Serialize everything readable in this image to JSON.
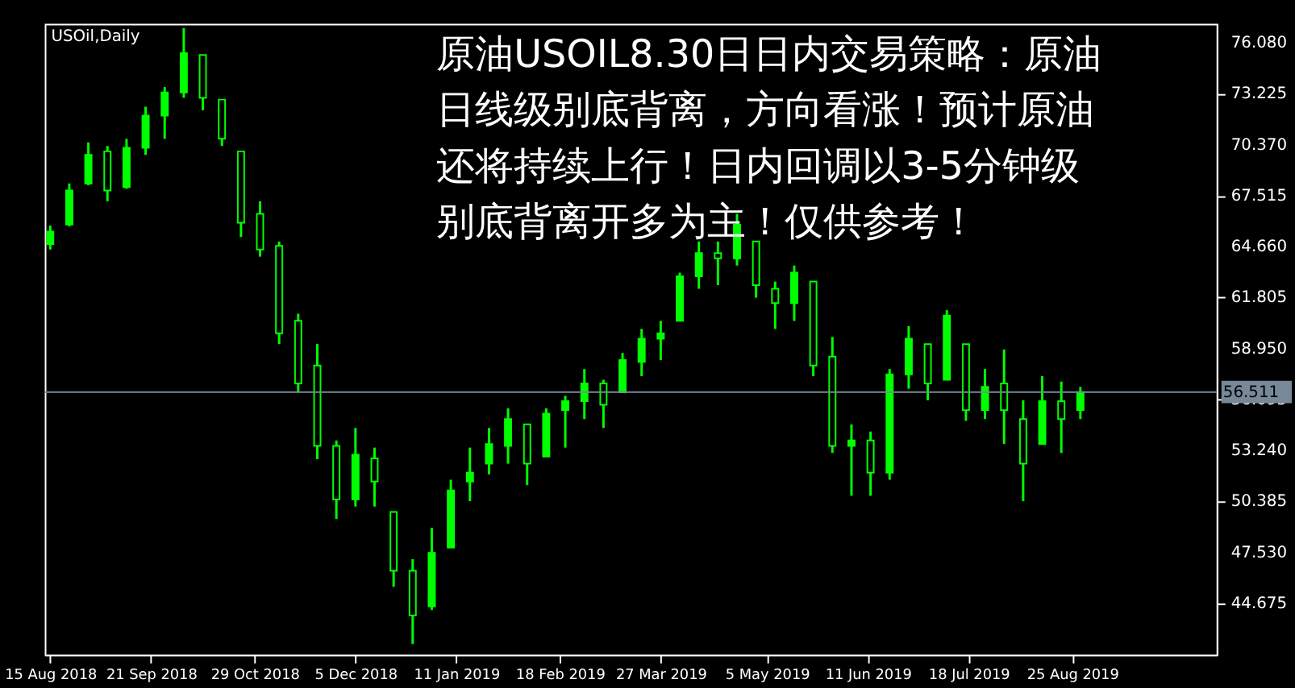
{
  "chart_data": {
    "type": "candlestick",
    "title": "USOil,Daily",
    "annotations": [
      "原油USOIL8.30日日内交易策略：原油日线级别底背离，方向看涨！预计原油还将持续上行！日内回调以3-5分钟级别底背离开多为主！仅供参考！"
    ],
    "x": [
      "2018-08-15",
      "2018-08-22",
      "2018-08-29",
      "2018-09-05",
      "2018-09-12",
      "2018-09-19",
      "2018-09-26",
      "2018-10-03",
      "2018-10-10",
      "2018-10-17",
      "2018-10-24",
      "2018-10-31",
      "2018-11-07",
      "2018-11-14",
      "2018-11-21",
      "2018-11-28",
      "2018-12-05",
      "2018-12-12",
      "2018-12-19",
      "2018-12-26",
      "2019-01-02",
      "2019-01-09",
      "2019-01-16",
      "2019-01-23",
      "2019-01-30",
      "2019-02-06",
      "2019-02-13",
      "2019-02-20",
      "2019-02-27",
      "2019-03-06",
      "2019-03-13",
      "2019-03-20",
      "2019-03-27",
      "2019-04-03",
      "2019-04-10",
      "2019-04-17",
      "2019-04-24",
      "2019-05-01",
      "2019-05-08",
      "2019-05-15",
      "2019-05-22",
      "2019-05-29",
      "2019-06-05",
      "2019-06-12",
      "2019-06-19",
      "2019-06-26",
      "2019-07-03",
      "2019-07-10",
      "2019-07-17",
      "2019-07-24",
      "2019-07-31",
      "2019-08-07",
      "2019-08-14",
      "2019-08-21",
      "2019-08-28"
    ],
    "ohlc": [
      [
        64.8,
        65.84,
        64.5,
        65.5
      ],
      [
        65.9,
        68.2,
        65.8,
        67.8
      ],
      [
        68.2,
        70.5,
        68.1,
        69.8
      ],
      [
        70.0,
        70.3,
        67.2,
        67.8
      ],
      [
        68.0,
        70.7,
        67.9,
        70.2
      ],
      [
        70.2,
        72.5,
        69.8,
        72.0
      ],
      [
        72.0,
        73.6,
        70.7,
        73.3
      ],
      [
        73.3,
        76.9,
        73.0,
        75.5
      ],
      [
        75.4,
        75.4,
        72.3,
        73.0
      ],
      [
        72.9,
        72.9,
        70.3,
        70.7
      ],
      [
        70.0,
        70.0,
        65.2,
        66.0
      ],
      [
        66.5,
        67.2,
        64.1,
        64.5
      ],
      [
        64.7,
        64.95,
        59.2,
        59.8
      ],
      [
        60.5,
        60.9,
        56.5,
        57.0
      ],
      [
        58.0,
        59.2,
        52.75,
        53.5
      ],
      [
        53.5,
        53.8,
        49.4,
        50.5
      ],
      [
        50.5,
        54.5,
        50.1,
        53.0
      ],
      [
        52.8,
        53.4,
        50.1,
        51.5
      ],
      [
        49.8,
        49.8,
        45.6,
        46.5
      ],
      [
        46.5,
        47.15,
        42.4,
        44.0
      ],
      [
        44.5,
        48.9,
        44.3,
        47.5
      ],
      [
        47.8,
        51.6,
        47.8,
        51.0
      ],
      [
        51.5,
        53.4,
        50.4,
        52.0
      ],
      [
        52.5,
        54.5,
        51.9,
        53.6
      ],
      [
        53.5,
        55.6,
        52.5,
        55.0
      ],
      [
        54.7,
        54.7,
        51.3,
        52.5
      ],
      [
        52.9,
        55.6,
        52.9,
        55.3
      ],
      [
        55.5,
        56.3,
        53.4,
        56.0
      ],
      [
        56.0,
        57.8,
        55.0,
        57.0
      ],
      [
        57.0,
        57.2,
        54.5,
        55.8
      ],
      [
        56.5,
        58.7,
        56.5,
        58.3
      ],
      [
        58.2,
        60.05,
        57.4,
        59.5
      ],
      [
        59.5,
        60.5,
        58.3,
        59.8
      ],
      [
        60.5,
        63.2,
        60.5,
        63.0
      ],
      [
        63.0,
        64.95,
        62.3,
        64.3
      ],
      [
        64.3,
        64.95,
        62.5,
        64.0
      ],
      [
        64.0,
        66.5,
        63.6,
        65.9
      ],
      [
        64.95,
        64.95,
        61.8,
        62.5
      ],
      [
        62.3,
        62.7,
        60.05,
        61.5
      ],
      [
        61.5,
        63.6,
        60.5,
        63.2
      ],
      [
        62.7,
        62.7,
        57.4,
        58.0
      ],
      [
        58.5,
        59.6,
        53.1,
        53.5
      ],
      [
        53.5,
        54.7,
        50.7,
        53.8
      ],
      [
        53.8,
        54.3,
        50.7,
        52.0
      ],
      [
        52.0,
        57.8,
        51.6,
        57.5
      ],
      [
        57.5,
        60.2,
        56.7,
        59.5
      ],
      [
        59.2,
        59.2,
        56.05,
        57.0
      ],
      [
        57.2,
        61.1,
        57.2,
        60.8
      ],
      [
        59.2,
        59.2,
        54.9,
        55.5
      ],
      [
        55.5,
        57.8,
        55.0,
        56.8
      ],
      [
        57.0,
        58.9,
        53.6,
        55.5
      ],
      [
        55.0,
        56.05,
        50.4,
        52.5
      ],
      [
        53.6,
        57.4,
        53.6,
        56.0
      ],
      [
        56.0,
        57.1,
        53.1,
        55.0
      ],
      [
        55.5,
        56.8,
        55.0,
        56.51
      ]
    ],
    "color": "#00ff00",
    "ylim": [
      41.8,
      77.15
    ],
    "yticks": [
      44.675,
      {
        "value": 47.53,
        "label": "47.530"
      },
      50.385,
      {
        "value": 53.24,
        "label": "53.240"
      },
      56.095,
      {
        "value": 58.95,
        "label": "58.950"
      },
      61.805,
      {
        "value": 64.66,
        "label": "64.660"
      },
      67.515,
      {
        "value": 70.37,
        "label": "70.370"
      },
      73.225,
      {
        "value": 76.08,
        "label": "76.080"
      }
    ],
    "xlim": [
      "2018-08-13",
      "2019-10-17"
    ],
    "xticks": [
      {
        "value": "2018-08-15",
        "label": "15 Aug 2018"
      },
      {
        "value": "2018-09-21",
        "label": "21 Sep 2018"
      },
      {
        "value": "2018-10-29",
        "label": "29 Oct 2018"
      },
      {
        "value": "2018-12-05",
        "label": "5 Dec 2018"
      },
      {
        "value": "2019-01-11",
        "label": "11 Jan 2019"
      },
      {
        "value": "2019-02-18",
        "label": "18 Feb 2019"
      },
      {
        "value": "2019-03-27",
        "label": "27 Mar 2019"
      },
      {
        "value": "2019-05-05",
        "label": "5 May 2019"
      },
      {
        "value": "2019-06-11",
        "label": "11 Jun 2019"
      },
      {
        "value": "2019-07-18",
        "label": "18 Jul 2019"
      },
      {
        "value": "2019-08-25",
        "label": "25 Aug 2019"
      }
    ],
    "ref_lines": [
      {
        "axis": "y",
        "value": 56.511,
        "label": "56.511",
        "color": "#778899"
      }
    ],
    "grid": false
  }
}
